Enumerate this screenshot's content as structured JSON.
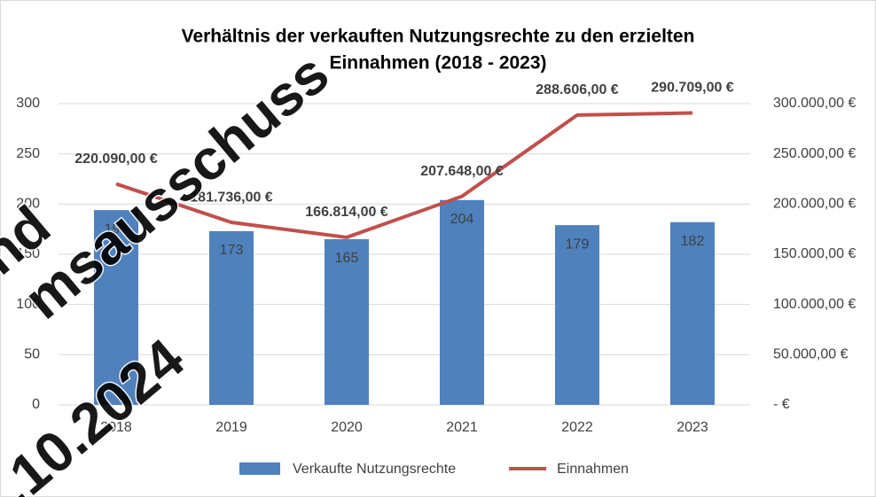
{
  "chart_data": {
    "type": "bar_line",
    "title": [
      "Verhältnis der verkauften Nutzungsrechte zu den erzielten",
      "Einnahmen (2018 - 2023)"
    ],
    "categories": [
      "2018",
      "2019",
      "2020",
      "2021",
      "2022",
      "2023"
    ],
    "series": [
      {
        "name": "Verkaufte Nutzungsrechte",
        "type": "bar",
        "color": "#4f81bd",
        "values": [
          194,
          173,
          165,
          204,
          179,
          182
        ]
      },
      {
        "name": "Einnahmen",
        "type": "line",
        "axis": "y2",
        "color": "#c0504d",
        "values": [
          220090,
          181736,
          166814,
          207648,
          288606,
          290709
        ],
        "value_labels": [
          "220.090,00 €",
          "181.736,00 €",
          "166.814,00 €",
          "207.648,00 €",
          "288.606,00 €",
          "290.709,00 €"
        ]
      }
    ],
    "ylim": [
      0,
      300
    ],
    "yticks": [
      0,
      50,
      100,
      150,
      200,
      250,
      300
    ],
    "y2lim": [
      0,
      300000
    ],
    "y2ticks": [
      {
        "value": 0,
        "label": "-   €"
      },
      {
        "value": 50000,
        "label": "50.000,00 €"
      },
      {
        "value": 100000,
        "label": "100.000,00 €"
      },
      {
        "value": 150000,
        "label": "150.000,00 €"
      },
      {
        "value": 200000,
        "label": "200.000,00 €"
      },
      {
        "value": 250000,
        "label": "250.000,00 €"
      },
      {
        "value": 300000,
        "label": "300.000,00 €"
      }
    ],
    "grid": true,
    "legend": "bottom",
    "watermark": [
      "nd",
      "msausschuss",
      ".10.2024"
    ]
  }
}
